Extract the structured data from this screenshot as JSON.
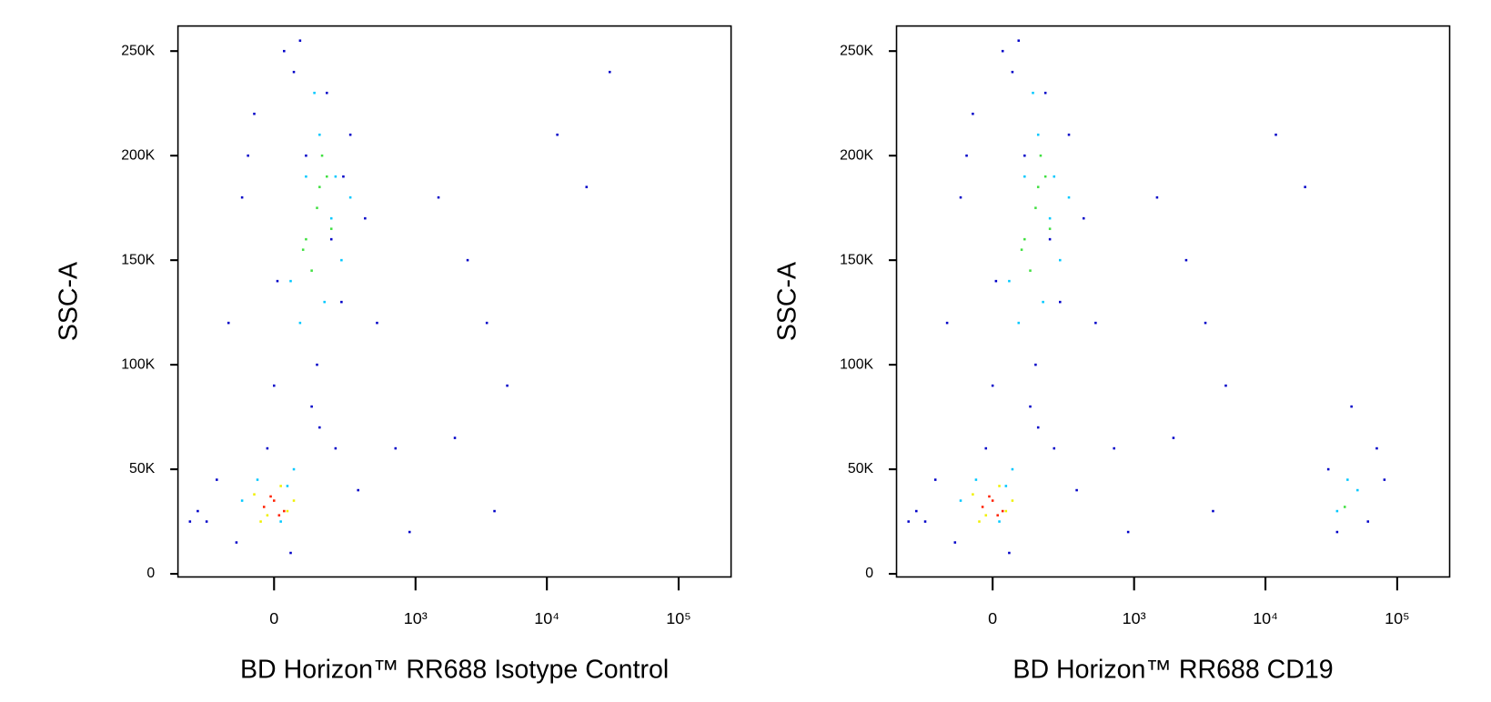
{
  "chart_data": [
    {
      "type": "scatter",
      "x_scale": "biexponential",
      "xlabel": "BD Horizon™ RR688 Isotype Control",
      "ylabel": "SSC-A",
      "xlim": [
        -440,
        250000
      ],
      "ylim": [
        -1500,
        262000
      ],
      "xticks": [
        0,
        {
          "value": 1000,
          "label": "10³"
        },
        {
          "value": 10000,
          "label": "10⁴"
        },
        {
          "value": 100000,
          "label": "10⁵"
        }
      ],
      "yticks": [
        0,
        {
          "value": 50000,
          "label": "50K"
        },
        {
          "value": 100000,
          "label": "100K"
        },
        {
          "value": 150000,
          "label": "150K"
        },
        {
          "value": 200000,
          "label": "200K"
        },
        {
          "value": 250000,
          "label": "250K"
        }
      ],
      "series": [
        {
          "color": "#0000c8",
          "x": [
            -300,
            -200,
            -150,
            -100,
            -60,
            -20,
            0,
            30,
            60,
            100,
            140,
            200,
            250,
            300,
            400,
            500,
            -250,
            -120,
            50,
            150,
            220,
            350,
            80,
            -80,
            10,
            180,
            1500,
            2500,
            3500,
            5000,
            12000,
            20000,
            900,
            700,
            2000,
            30000,
            4000,
            -350,
            120,
            260
          ],
          "y": [
            30000,
            45000,
            120000,
            180000,
            220000,
            60000,
            90000,
            250000,
            240000,
            200000,
            100000,
            160000,
            130000,
            210000,
            170000,
            120000,
            25000,
            15000,
            10000,
            70000,
            60000,
            40000,
            255000,
            200000,
            140000,
            230000,
            180000,
            150000,
            120000,
            90000,
            210000,
            185000,
            20000,
            60000,
            65000,
            240000,
            30000,
            25000,
            80000,
            190000
          ]
        },
        {
          "color": "#00c8ff",
          "x": [
            50,
            100,
            150,
            200,
            250,
            80,
            130,
            170,
            220,
            -50,
            20,
            60,
            -100,
            40,
            300
          ],
          "y": [
            140000,
            190000,
            210000,
            170000,
            150000,
            120000,
            230000,
            130000,
            190000,
            45000,
            25000,
            50000,
            35000,
            42000,
            180000
          ]
        },
        {
          "color": "#40e040",
          "x": [
            100,
            140,
            180,
            120,
            160,
            200,
            90,
            150
          ],
          "y": [
            160000,
            175000,
            190000,
            145000,
            200000,
            165000,
            155000,
            185000
          ]
        },
        {
          "color": "#f0f000",
          "x": [
            -60,
            -20,
            20,
            60,
            -40,
            40
          ],
          "y": [
            38000,
            28000,
            42000,
            35000,
            25000,
            30000
          ]
        },
        {
          "color": "#ff2000",
          "x": [
            -30,
            0,
            30,
            -10,
            15
          ],
          "y": [
            32000,
            35000,
            30000,
            37000,
            28000
          ]
        }
      ]
    },
    {
      "type": "scatter",
      "x_scale": "biexponential",
      "xlabel": "BD Horizon™ RR688 CD19",
      "ylabel": "SSC-A",
      "xlim": [
        -440,
        250000
      ],
      "ylim": [
        -1500,
        262000
      ],
      "xticks": [
        0,
        {
          "value": 1000,
          "label": "10³"
        },
        {
          "value": 10000,
          "label": "10⁴"
        },
        {
          "value": 100000,
          "label": "10⁵"
        }
      ],
      "yticks": [
        0,
        {
          "value": 50000,
          "label": "50K"
        },
        {
          "value": 100000,
          "label": "100K"
        },
        {
          "value": 150000,
          "label": "150K"
        },
        {
          "value": 200000,
          "label": "200K"
        },
        {
          "value": 250000,
          "label": "250K"
        }
      ],
      "series": [
        {
          "color": "#0000c8",
          "x": [
            -300,
            -200,
            -150,
            -100,
            -60,
            -20,
            0,
            30,
            60,
            100,
            140,
            200,
            250,
            300,
            400,
            500,
            -250,
            -120,
            50,
            150,
            220,
            350,
            80,
            -80,
            10,
            180,
            1500,
            2500,
            3500,
            5000,
            12000,
            20000,
            900,
            700,
            2000,
            30000,
            45000,
            60000,
            80000,
            35000,
            70000,
            4000,
            -350,
            120
          ],
          "y": [
            30000,
            45000,
            120000,
            180000,
            220000,
            60000,
            90000,
            250000,
            240000,
            200000,
            100000,
            160000,
            130000,
            210000,
            170000,
            120000,
            25000,
            15000,
            10000,
            70000,
            60000,
            40000,
            255000,
            200000,
            140000,
            230000,
            180000,
            150000,
            120000,
            90000,
            210000,
            185000,
            20000,
            60000,
            65000,
            50000,
            80000,
            25000,
            45000,
            20000,
            60000,
            30000,
            25000,
            80000
          ]
        },
        {
          "color": "#00c8ff",
          "x": [
            50,
            100,
            150,
            200,
            250,
            80,
            130,
            170,
            220,
            -50,
            20,
            60,
            -100,
            40,
            300,
            35000,
            50000,
            42000
          ],
          "y": [
            140000,
            190000,
            210000,
            170000,
            150000,
            120000,
            230000,
            130000,
            190000,
            45000,
            25000,
            50000,
            35000,
            42000,
            180000,
            30000,
            40000,
            45000
          ]
        },
        {
          "color": "#40e040",
          "x": [
            100,
            140,
            180,
            120,
            160,
            200,
            90,
            150,
            40000
          ],
          "y": [
            160000,
            175000,
            190000,
            145000,
            200000,
            165000,
            155000,
            185000,
            32000
          ]
        },
        {
          "color": "#f0f000",
          "x": [
            -60,
            -20,
            20,
            60,
            -40,
            40
          ],
          "y": [
            38000,
            28000,
            42000,
            35000,
            25000,
            30000
          ]
        },
        {
          "color": "#ff2000",
          "x": [
            -30,
            0,
            30,
            -10,
            15
          ],
          "y": [
            32000,
            35000,
            30000,
            37000,
            28000
          ]
        }
      ]
    }
  ]
}
